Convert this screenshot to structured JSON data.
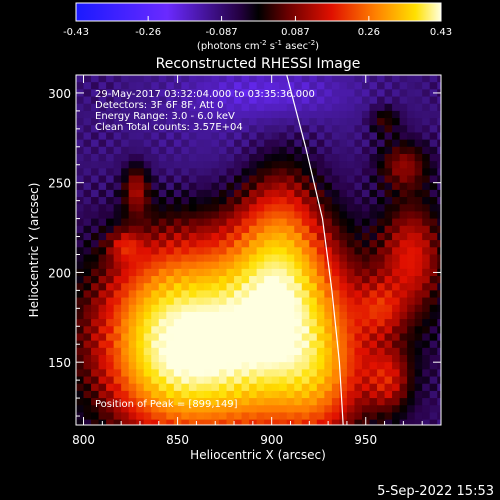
{
  "chart_data": {
    "type": "heatmap",
    "title": "Reconstructed RHESSI Image",
    "xlabel": "Heliocentric X (arcsec)",
    "ylabel": "Heliocentric Y (arcsec)",
    "xlim": [
      796,
      990
    ],
    "ylim": [
      115,
      310
    ],
    "x_ticks": [
      800,
      850,
      900,
      950
    ],
    "y_ticks": [
      150,
      200,
      250,
      300
    ],
    "colorbar": {
      "range": [
        -0.43,
        0.43
      ],
      "ticks": [
        "-0.43",
        "-0.26",
        "-0.087",
        "0.087",
        "0.26",
        "0.43"
      ],
      "units_text": "(photons cm",
      "units_exp1": "-2",
      "units_mid1": " s",
      "units_exp2": "-1",
      "units_mid2": " asec",
      "units_exp3": "-2",
      "units_end": ")"
    },
    "info_lines": [
      "29-May-2017 03:32:04.000 to 03:35:36.000",
      "Detectors: 3F 6F 8F, Att 0",
      "Energy Range: 3.0 - 6.0 keV",
      "Clean    Total counts: 3.57E+04"
    ],
    "peak_label": "Position of Peak = [899,149]",
    "peak": [
      899,
      149
    ],
    "sources": [
      {
        "x": 880,
        "y": 165,
        "sx": 45,
        "sy": 38,
        "amp": 0.43
      },
      {
        "x": 855,
        "y": 150,
        "sx": 25,
        "sy": 25,
        "amp": 0.12
      },
      {
        "x": 905,
        "y": 205,
        "sx": 16,
        "sy": 40,
        "amp": 0.22
      },
      {
        "x": 840,
        "y": 165,
        "sx": 18,
        "sy": 35,
        "amp": 0.1
      },
      {
        "x": 925,
        "y": 140,
        "sx": 14,
        "sy": 25,
        "amp": 0.12
      },
      {
        "x": 828,
        "y": 247,
        "sx": 5,
        "sy": 10,
        "amp": 0.13
      },
      {
        "x": 822,
        "y": 215,
        "sx": 6,
        "sy": 6,
        "amp": 0.1
      },
      {
        "x": 970,
        "y": 260,
        "sx": 10,
        "sy": 10,
        "amp": 0.12
      },
      {
        "x": 975,
        "y": 210,
        "sx": 12,
        "sy": 22,
        "amp": 0.16
      },
      {
        "x": 958,
        "y": 180,
        "sx": 8,
        "sy": 10,
        "amp": 0.1
      },
      {
        "x": 962,
        "y": 140,
        "sx": 8,
        "sy": 12,
        "amp": 0.12
      },
      {
        "x": 960,
        "y": 285,
        "sx": 6,
        "sy": 6,
        "amp": 0.09
      },
      {
        "x": 900,
        "y": 300,
        "sx": 30,
        "sy": 10,
        "amp": -0.1
      },
      {
        "x": 880,
        "y": 280,
        "sx": 40,
        "sy": 30,
        "amp": -0.04
      }
    ],
    "background_level": -0.06,
    "limb_points": [
      [
        908,
        310
      ],
      [
        918,
        270
      ],
      [
        927,
        230
      ],
      [
        932,
        190
      ],
      [
        936,
        150
      ],
      [
        938,
        115
      ]
    ]
  },
  "footer": {
    "date_text": "5-Sep-2022 15:53"
  }
}
